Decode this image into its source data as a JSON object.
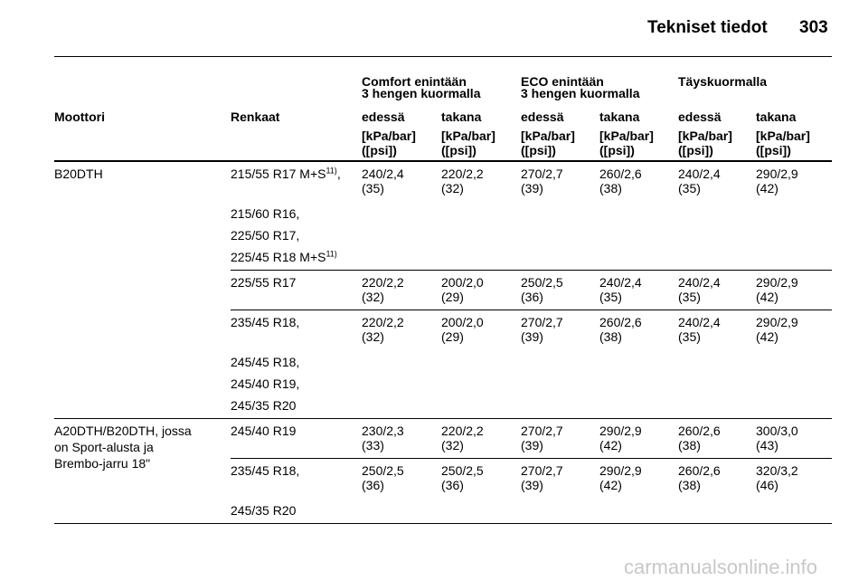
{
  "header": {
    "title": "Tekniset tiedot",
    "page": "303"
  },
  "table": {
    "group_headers": [
      {
        "lines": [
          "Comfort enintään",
          "3 hengen kuormalla"
        ]
      },
      {
        "lines": [
          "ECO enintään",
          "3 hengen kuormalla"
        ]
      },
      {
        "lines": [
          "Täyskuormalla"
        ]
      }
    ],
    "columns": [
      "Moottori",
      "Renkaat",
      "edessä",
      "takana",
      "edessä",
      "takana",
      "edessä",
      "takana"
    ],
    "units": [
      [
        "[kPa/bar]",
        "([psi])"
      ],
      [
        "[kPa/bar]",
        "([psi])"
      ],
      [
        "[kPa/bar]",
        "([psi])"
      ],
      [
        "[kPa/bar]",
        "([psi])"
      ],
      [
        "[kPa/bar]",
        "([psi])"
      ],
      [
        "[kPa/bar]",
        "([psi])"
      ]
    ],
    "engines": [
      {
        "name": [
          "B20DTH"
        ],
        "blocks": [
          {
            "tyres": [
              {
                "text": "215/55 R17 M+S",
                "sup": "11)",
                "after": ","
              },
              {
                "text": "215/60 R16,"
              },
              {
                "text": "225/50 R17,"
              },
              {
                "text": "225/45 R18 M+S",
                "sup": "11)"
              }
            ],
            "pressures": [
              [
                "240/2,4",
                "(35)"
              ],
              [
                "220/2,2",
                "(32)"
              ],
              [
                "270/2,7",
                "(39)"
              ],
              [
                "260/2,6",
                "(38)"
              ],
              [
                "240/2,4",
                "(35)"
              ],
              [
                "290/2,9",
                "(42)"
              ]
            ]
          },
          {
            "tyres": [
              {
                "text": "225/55 R17"
              }
            ],
            "pressures": [
              [
                "220/2,2",
                "(32)"
              ],
              [
                "200/2,0",
                "(29)"
              ],
              [
                "250/2,5",
                "(36)"
              ],
              [
                "240/2,4",
                "(35)"
              ],
              [
                "240/2,4",
                "(35)"
              ],
              [
                "290/2,9",
                "(42)"
              ]
            ]
          },
          {
            "tyres": [
              {
                "text": "235/45 R18,"
              },
              {
                "text": "245/45 R18,"
              },
              {
                "text": "245/40 R19,"
              },
              {
                "text": "245/35 R20"
              }
            ],
            "pressures": [
              [
                "220/2,2",
                "(32)"
              ],
              [
                "200/2,0",
                "(29)"
              ],
              [
                "270/2,7",
                "(39)"
              ],
              [
                "260/2,6",
                "(38)"
              ],
              [
                "240/2,4",
                "(35)"
              ],
              [
                "290/2,9",
                "(42)"
              ]
            ]
          }
        ]
      },
      {
        "name": [
          "A20DTH/B20DTH, jossa",
          "on Sport-alusta ja",
          "Brembo-jarru 18\""
        ],
        "blocks": [
          {
            "tyres": [
              {
                "text": "245/40 R19"
              }
            ],
            "pressures": [
              [
                "230/2,3",
                "(33)"
              ],
              [
                "220/2,2",
                "(32)"
              ],
              [
                "270/2,7",
                "(39)"
              ],
              [
                "290/2,9",
                "(42)"
              ],
              [
                "260/2,6",
                "(38)"
              ],
              [
                "300/3,0",
                "(43)"
              ]
            ]
          },
          {
            "tyres": [
              {
                "text": "235/45 R18,"
              },
              {
                "text": "245/35 R20"
              }
            ],
            "pressures": [
              [
                "250/2,5",
                "(36)"
              ],
              [
                "250/2,5",
                "(36)"
              ],
              [
                "270/2,7",
                "(39)"
              ],
              [
                "290/2,9",
                "(42)"
              ],
              [
                "260/2,6",
                "(38)"
              ],
              [
                "320/3,2",
                "(46)"
              ]
            ]
          }
        ]
      }
    ]
  },
  "watermark": "carmanualsonline.info"
}
